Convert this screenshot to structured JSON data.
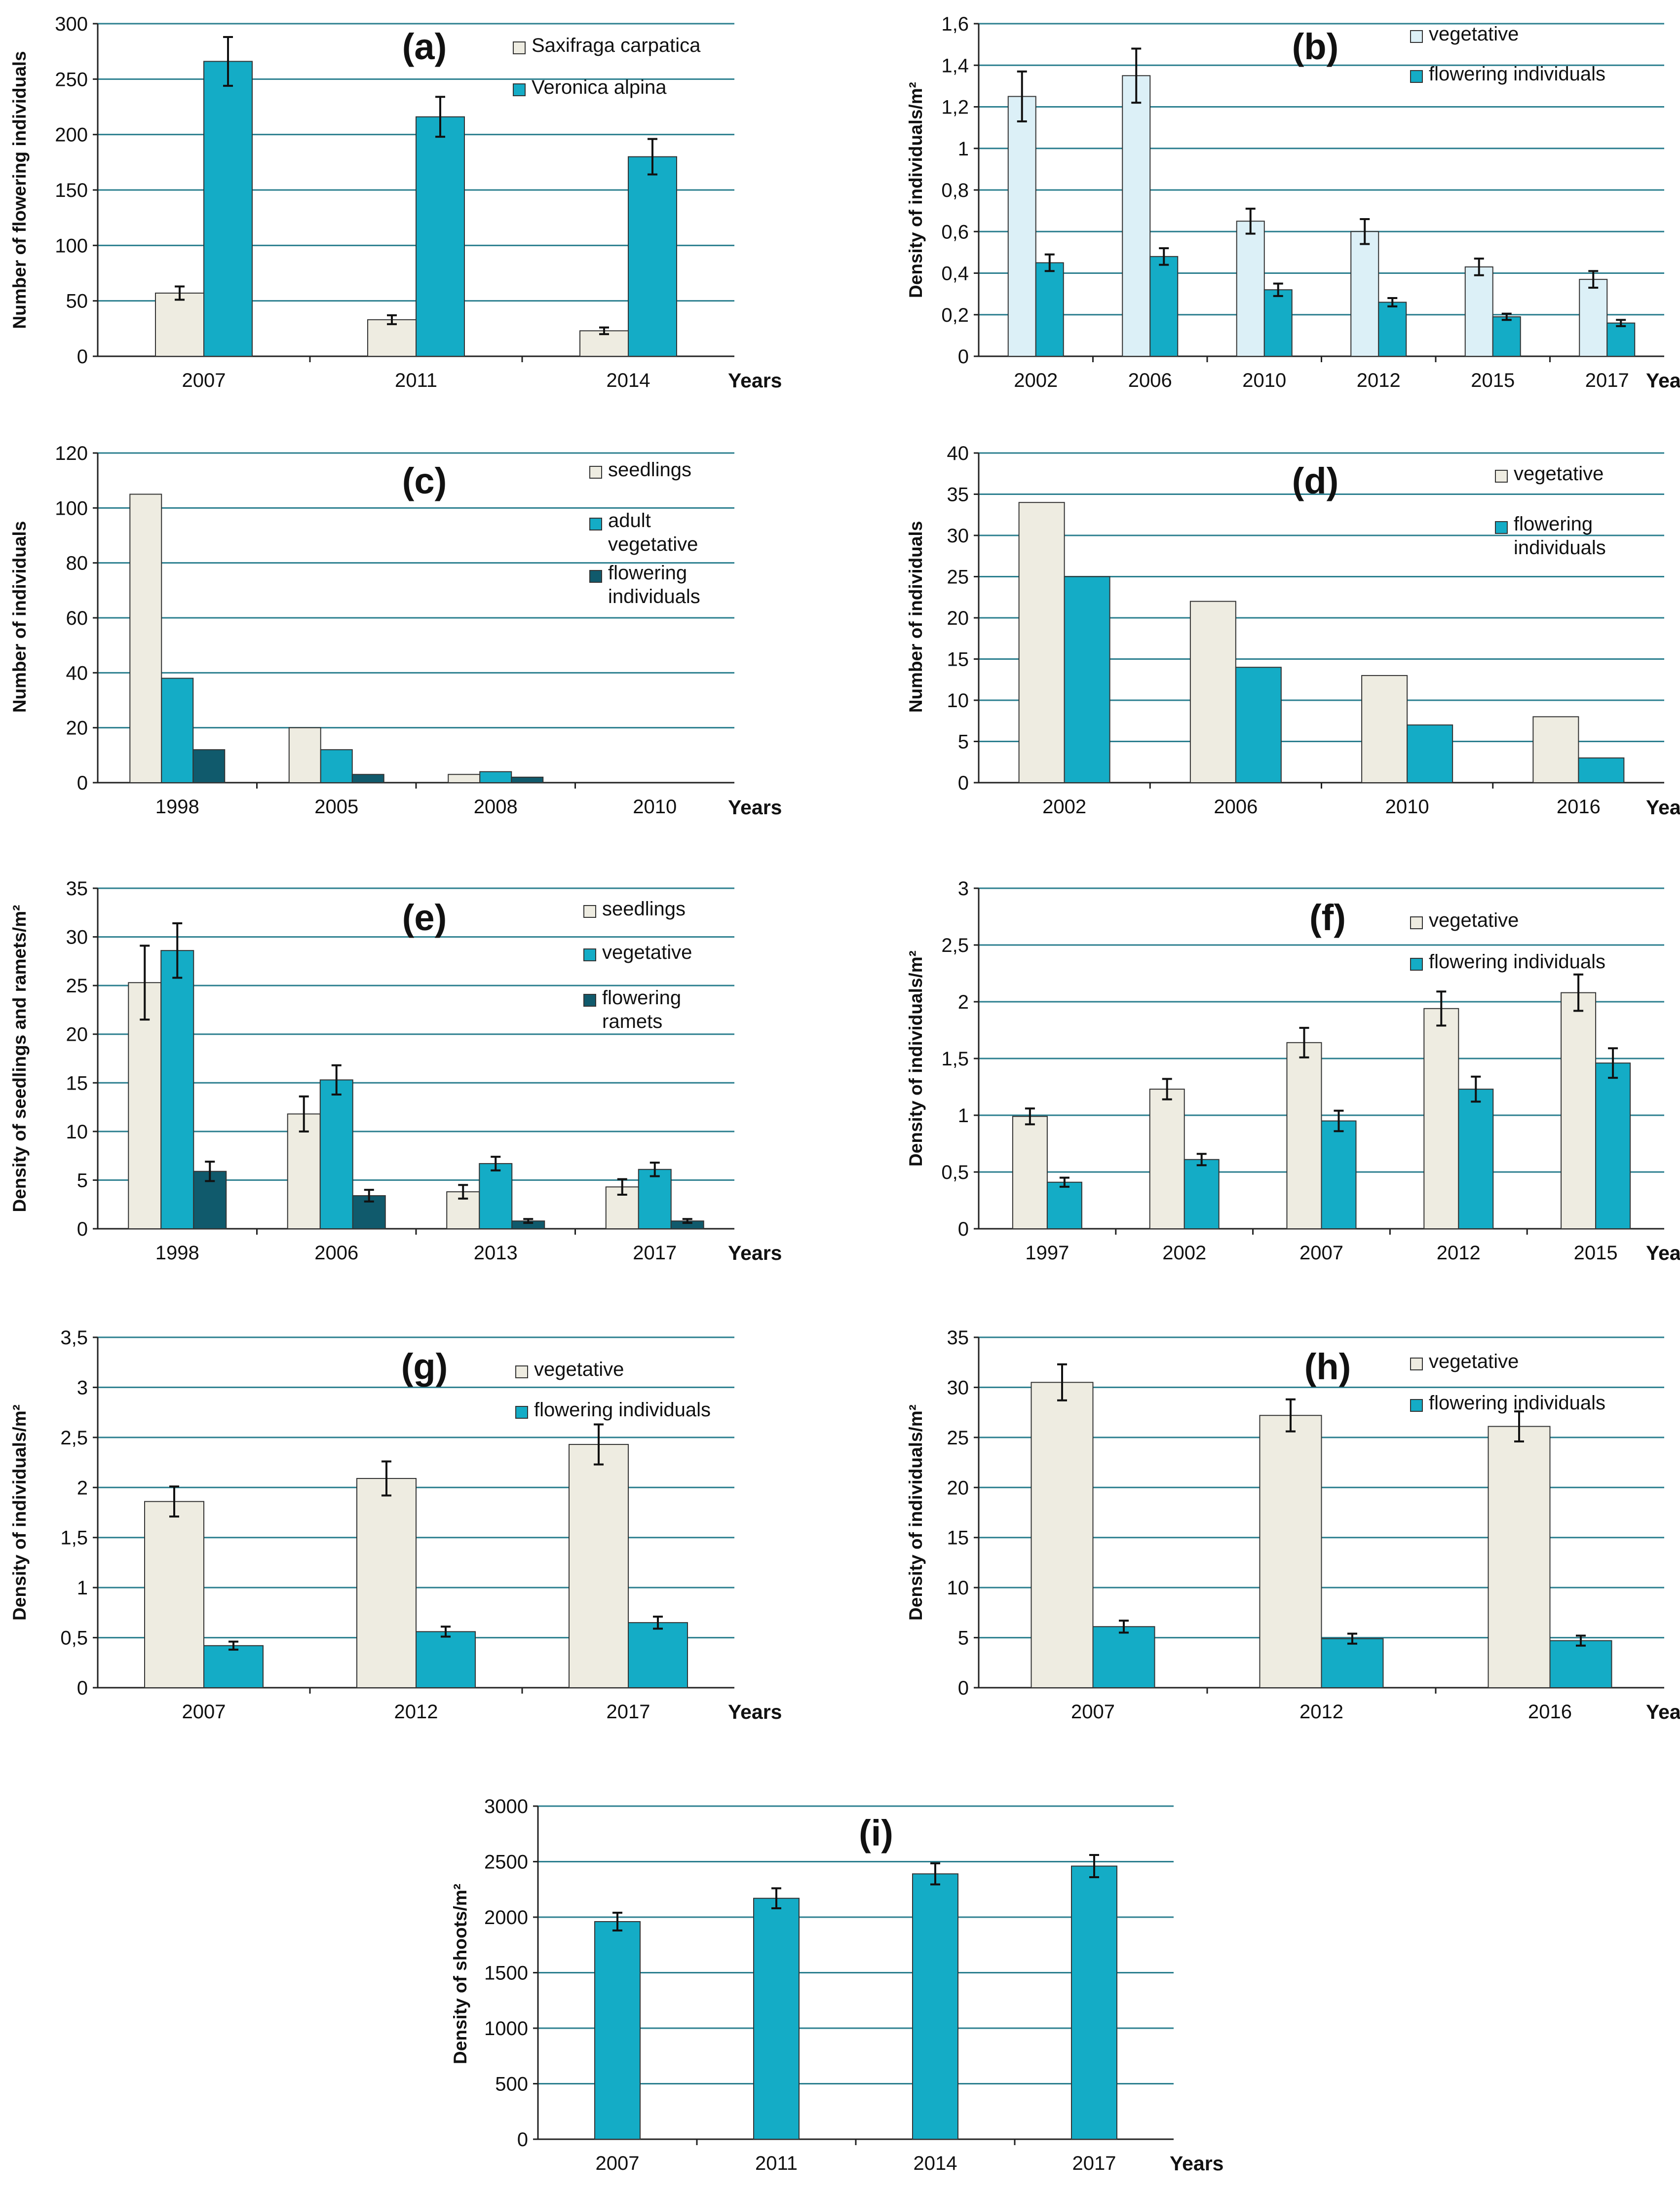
{
  "colors": {
    "beige": "#eeece1",
    "lightblue": "#dcf0f7",
    "teal": "#14acc6",
    "darkteal": "#105a6c",
    "grid": "#2b7f8f"
  },
  "chart_data": [
    {
      "id": "a",
      "type": "bar",
      "title": "(a)",
      "ylabel": "Number of flowering individuals",
      "xlabel": "Years",
      "ylim": [
        0,
        300
      ],
      "yticks": [
        "0",
        "50",
        "100",
        "150",
        "200",
        "250",
        "300"
      ],
      "categories": [
        "2007",
        "2011",
        "2014"
      ],
      "series": [
        {
          "name": "Saxifraga carpatica",
          "color": "beige",
          "values": [
            57,
            33,
            23
          ],
          "errors": [
            6,
            4,
            3
          ]
        },
        {
          "name": "Veronica alpina",
          "color": "teal",
          "values": [
            266,
            216,
            180
          ],
          "errors": [
            22,
            18,
            16
          ]
        }
      ]
    },
    {
      "id": "b",
      "type": "bar",
      "title": "(b)",
      "ylabel": "Density of individuals/m²",
      "xlabel": "Years",
      "ylim": [
        0,
        1.6
      ],
      "yticks": [
        "0",
        "0,2",
        "0,4",
        "0,6",
        "0,8",
        "1",
        "1,2",
        "1,4",
        "1,6"
      ],
      "categories": [
        "2002",
        "2006",
        "2010",
        "2012",
        "2015",
        "2017"
      ],
      "series": [
        {
          "name": "vegetative",
          "color": "lightblue",
          "values": [
            1.25,
            1.35,
            0.65,
            0.6,
            0.43,
            0.37
          ],
          "errors": [
            0.12,
            0.13,
            0.06,
            0.06,
            0.04,
            0.04
          ]
        },
        {
          "name": "flowering individuals",
          "color": "teal",
          "values": [
            0.45,
            0.48,
            0.32,
            0.26,
            0.19,
            0.16
          ],
          "errors": [
            0.04,
            0.04,
            0.03,
            0.02,
            0.015,
            0.015
          ]
        }
      ]
    },
    {
      "id": "c",
      "type": "bar",
      "title": "(c)",
      "ylabel": "Number of individuals",
      "xlabel": "Years",
      "ylim": [
        0,
        120
      ],
      "yticks": [
        "0",
        "20",
        "40",
        "60",
        "80",
        "100",
        "120"
      ],
      "categories": [
        "1998",
        "2005",
        "2008",
        "2010"
      ],
      "series": [
        {
          "name": "seedlings",
          "color": "beige",
          "values": [
            105,
            20,
            3,
            0
          ]
        },
        {
          "name": "adult vegetative",
          "color": "teal",
          "values": [
            38,
            12,
            4,
            0
          ]
        },
        {
          "name": "flowering individuals",
          "color": "darkteal",
          "values": [
            12,
            3,
            2,
            0
          ]
        }
      ]
    },
    {
      "id": "d",
      "type": "bar",
      "title": "(d)",
      "ylabel": "Number of individuals",
      "xlabel": "Years",
      "ylim": [
        0,
        40
      ],
      "yticks": [
        "0",
        "5",
        "10",
        "15",
        "20",
        "25",
        "30",
        "35",
        "40"
      ],
      "categories": [
        "2002",
        "2006",
        "2010",
        "2016"
      ],
      "series": [
        {
          "name": "vegetative",
          "color": "beige",
          "values": [
            34,
            22,
            13,
            8
          ]
        },
        {
          "name": "flowering individuals",
          "color": "teal",
          "values": [
            25,
            14,
            7,
            3
          ]
        }
      ]
    },
    {
      "id": "e",
      "type": "bar",
      "title": "(e)",
      "ylabel": "Density of seedlings and ramets/m²",
      "xlabel": "Years",
      "ylim": [
        0,
        35
      ],
      "yticks": [
        "0",
        "5",
        "10",
        "15",
        "20",
        "25",
        "30",
        "35"
      ],
      "categories": [
        "1998",
        "2006",
        "2013",
        "2017"
      ],
      "series": [
        {
          "name": "seedlings",
          "color": "beige",
          "values": [
            25.3,
            11.8,
            3.8,
            4.3
          ],
          "errors": [
            3.8,
            1.8,
            0.7,
            0.8
          ]
        },
        {
          "name": "vegetative",
          "color": "teal",
          "values": [
            28.6,
            15.3,
            6.7,
            6.1
          ],
          "errors": [
            2.8,
            1.5,
            0.7,
            0.7
          ]
        },
        {
          "name": "flowering ramets",
          "color": "darkteal",
          "values": [
            5.9,
            3.4,
            0.8,
            0.8
          ],
          "errors": [
            1.0,
            0.6,
            0.2,
            0.2
          ]
        }
      ]
    },
    {
      "id": "f",
      "type": "bar",
      "title": "(f)",
      "ylabel": "Density of individuals/m²",
      "xlabel": "Years",
      "ylim": [
        0,
        3
      ],
      "yticks": [
        "0",
        "0,5",
        "1",
        "1,5",
        "2",
        "2,5",
        "3"
      ],
      "categories": [
        "1997",
        "2002",
        "2007",
        "2012",
        "2015"
      ],
      "series": [
        {
          "name": "vegetative",
          "color": "beige",
          "values": [
            0.99,
            1.23,
            1.64,
            1.94,
            2.08
          ],
          "errors": [
            0.07,
            0.09,
            0.13,
            0.15,
            0.16
          ]
        },
        {
          "name": "flowering individuals",
          "color": "teal",
          "values": [
            0.41,
            0.61,
            0.95,
            1.23,
            1.46
          ],
          "errors": [
            0.04,
            0.05,
            0.09,
            0.11,
            0.13
          ]
        }
      ]
    },
    {
      "id": "g",
      "type": "bar",
      "title": "(g)",
      "ylabel": "Density of individuals/m²",
      "xlabel": "Years",
      "ylim": [
        0,
        3.5
      ],
      "yticks": [
        "0",
        "0,5",
        "1",
        "1,5",
        "2",
        "2,5",
        "3",
        "3,5"
      ],
      "categories": [
        "2007",
        "2012",
        "2017"
      ],
      "series": [
        {
          "name": "vegetative",
          "color": "beige",
          "values": [
            1.86,
            2.09,
            2.43
          ],
          "errors": [
            0.15,
            0.17,
            0.2
          ]
        },
        {
          "name": "flowering individuals",
          "color": "teal",
          "values": [
            0.42,
            0.56,
            0.65
          ],
          "errors": [
            0.04,
            0.05,
            0.06
          ]
        }
      ]
    },
    {
      "id": "h",
      "type": "bar",
      "title": "(h)",
      "ylabel": "Density of individuals/m²",
      "xlabel": "Years",
      "ylim": [
        0,
        35
      ],
      "yticks": [
        "0",
        "5",
        "10",
        "15",
        "20",
        "25",
        "30",
        "35"
      ],
      "categories": [
        "2007",
        "2012",
        "2016"
      ],
      "series": [
        {
          "name": "vegetative",
          "color": "beige",
          "values": [
            30.5,
            27.2,
            26.1
          ],
          "errors": [
            1.8,
            1.6,
            1.5
          ]
        },
        {
          "name": "flowering individuals",
          "color": "teal",
          "values": [
            6.1,
            4.9,
            4.7
          ],
          "errors": [
            0.6,
            0.5,
            0.5
          ]
        }
      ]
    },
    {
      "id": "i",
      "type": "bar",
      "title": "(i)",
      "ylabel": "Density of shoots/m²",
      "xlabel": "Years",
      "ylim": [
        0,
        3000
      ],
      "yticks": [
        "0",
        "500",
        "1000",
        "1500",
        "2000",
        "2500",
        "3000"
      ],
      "categories": [
        "2007",
        "2011",
        "2014",
        "2017"
      ],
      "series": [
        {
          "name": "shoots",
          "color": "teal",
          "values": [
            1960,
            2170,
            2390,
            2460
          ],
          "errors": [
            80,
            90,
            95,
            100
          ]
        }
      ]
    }
  ]
}
